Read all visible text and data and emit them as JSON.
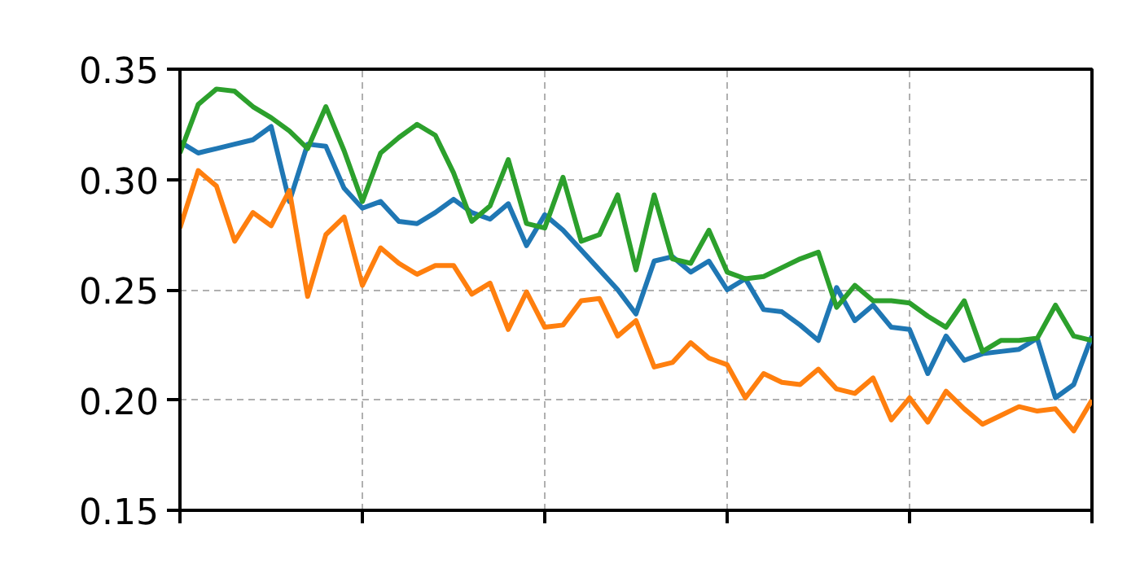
{
  "chart_data": {
    "type": "line",
    "categories": [
      null,
      null,
      null,
      null,
      null,
      null,
      null,
      null,
      null,
      null,
      null,
      null,
      null,
      null,
      null,
      null,
      null,
      null,
      null,
      null,
      null,
      null,
      null,
      null,
      null,
      null,
      null,
      null,
      null,
      null,
      null,
      null,
      null,
      null,
      null,
      null,
      null,
      null,
      null,
      null,
      null,
      null,
      null,
      null,
      null,
      null,
      null,
      null,
      null,
      null,
      null
    ],
    "ylim": [
      0.15,
      0.35
    ],
    "yticks": [
      {
        "value": 0.15,
        "label": "0.15"
      },
      {
        "value": 0.2,
        "label": "0.20"
      },
      {
        "value": 0.25,
        "label": "0.25"
      },
      {
        "value": 0.3,
        "label": "0.30"
      },
      {
        "value": 0.35,
        "label": "0.35"
      }
    ],
    "grid": true,
    "tick_labels": "y",
    "line_style": "solid",
    "series": [
      {
        "color": "#1f77b4",
        "values": [
          0.317,
          0.312,
          0.314,
          0.316,
          0.318,
          0.324,
          0.29,
          0.316,
          0.315,
          0.296,
          0.287,
          0.29,
          0.281,
          0.28,
          0.285,
          0.291,
          0.285,
          0.282,
          0.289,
          0.27,
          0.284,
          0.277,
          0.268,
          0.259,
          0.25,
          0.239,
          0.263,
          0.265,
          0.258,
          0.263,
          0.25,
          0.255,
          0.241,
          0.24,
          0.234,
          0.227,
          0.251,
          0.236,
          0.243,
          0.233,
          0.232,
          0.212,
          0.229,
          0.218,
          0.221,
          0.222,
          0.223,
          0.228,
          0.201,
          0.207,
          0.229
        ]
      },
      {
        "color": "#ff7f0e",
        "values": [
          0.278,
          0.304,
          0.297,
          0.272,
          0.285,
          0.279,
          0.295,
          0.247,
          0.275,
          0.283,
          0.252,
          0.269,
          0.262,
          0.257,
          0.261,
          0.261,
          0.248,
          0.253,
          0.232,
          0.249,
          0.233,
          0.234,
          0.245,
          0.246,
          0.229,
          0.236,
          0.215,
          0.217,
          0.226,
          0.219,
          0.216,
          0.201,
          0.212,
          0.208,
          0.207,
          0.214,
          0.205,
          0.203,
          0.21,
          0.191,
          0.201,
          0.19,
          0.204,
          0.196,
          0.189,
          0.193,
          0.197,
          0.195,
          0.196,
          0.186,
          0.2
        ]
      },
      {
        "color": "#2ca02c",
        "values": [
          0.312,
          0.334,
          0.341,
          0.34,
          0.333,
          0.328,
          0.322,
          0.314,
          0.333,
          0.313,
          0.29,
          0.312,
          0.319,
          0.325,
          0.32,
          0.303,
          0.281,
          0.288,
          0.309,
          0.28,
          0.278,
          0.301,
          0.272,
          0.275,
          0.293,
          0.259,
          0.293,
          0.264,
          0.262,
          0.277,
          0.258,
          0.255,
          0.256,
          0.26,
          0.264,
          0.267,
          0.242,
          0.252,
          0.245,
          0.245,
          0.244,
          0.238,
          0.233,
          0.245,
          0.222,
          0.227,
          0.227,
          0.228,
          0.243,
          0.229,
          0.227
        ]
      }
    ]
  }
}
